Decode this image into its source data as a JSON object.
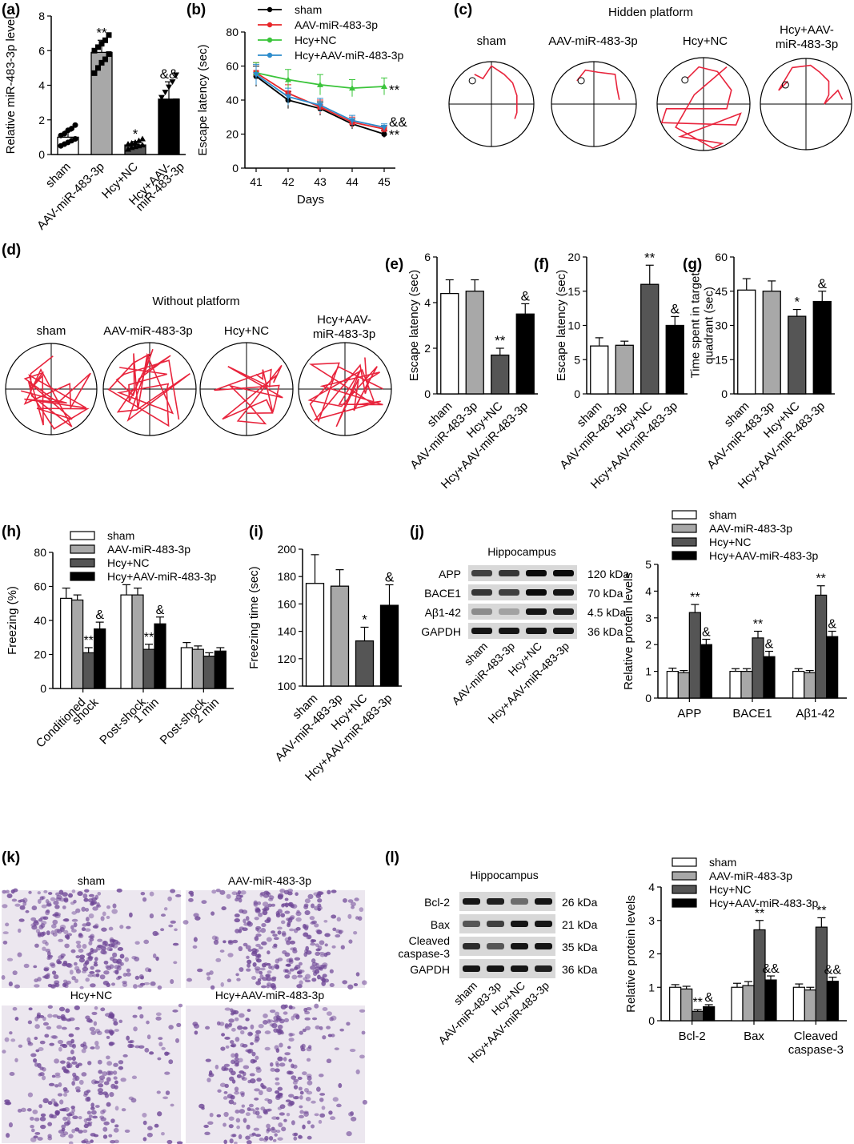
{
  "groups": [
    "sham",
    "AAV-miR-483-3p",
    "Hcy+NC",
    "Hcy+AAV-miR-483-3p"
  ],
  "group_labels_two_line": {
    "c3": [
      "Hcy+AAV-",
      "miR-483-3p"
    ],
    "a3": [
      "Hcy+AAV-",
      "miR-483-3p"
    ]
  },
  "colors": {
    "line_sham": "#000000",
    "line_aav": "#e8262a",
    "line_hcy": "#3ac43a",
    "line_hcyaav": "#2d8ccc",
    "trace": "#e8243c",
    "bar_fills": [
      "#ffffff",
      "#a8a8a8",
      "#555555",
      "#000000"
    ]
  },
  "panels": {
    "a": "(a)",
    "b": "(b)",
    "c": "(c)",
    "d": "(d)",
    "e": "(e)",
    "f": "(f)",
    "g": "(g)",
    "h": "(h)",
    "i": "(i)",
    "j": "(j)",
    "k": "(k)",
    "l": "(l)"
  },
  "text": {
    "hidden_platform": "Hidden platform",
    "without_platform": "Without platform",
    "hippocampus": "Hippocampus",
    "c_sham": "sham",
    "c_aav": "AAV-miR-483-3p",
    "c_hcy": "Hcy+NC",
    "c_hcyaav1": "Hcy+AAV-",
    "c_hcyaav2": "miR-483-3p",
    "k_sham": "sham",
    "k_aav": "AAV-miR-483-3p",
    "k_hcy": "Hcy+NC",
    "k_hcyaav": "Hcy+AAV-miR-483-3p"
  },
  "blots": {
    "j": {
      "rows": [
        "APP",
        "BACE1",
        "Aβ1-42",
        "GAPDH"
      ],
      "sizes": [
        "120 kDa",
        "70 kDa",
        "4.5 kDa",
        "36 kDa"
      ],
      "intensity": [
        [
          0.7,
          0.75,
          0.95,
          0.95
        ],
        [
          0.75,
          0.7,
          0.95,
          0.9
        ],
        [
          0.35,
          0.25,
          0.9,
          0.85
        ],
        [
          0.9,
          0.9,
          0.9,
          0.9
        ]
      ]
    },
    "l": {
      "rows": [
        "Bcl-2",
        "Bax",
        "Cleaved caspase-3",
        "GAPDH"
      ],
      "row_lines": [
        [
          "Bcl-2"
        ],
        [
          "Bax"
        ],
        [
          "Cleaved",
          "caspase-3"
        ],
        [
          "GAPDH"
        ]
      ],
      "sizes": [
        "26 kDa",
        "21 kDa",
        "35 kDa",
        "36 kDa"
      ],
      "intensity": [
        [
          0.9,
          0.85,
          0.5,
          0.9
        ],
        [
          0.6,
          0.7,
          0.9,
          0.9
        ],
        [
          0.8,
          0.6,
          0.9,
          0.9
        ],
        [
          0.9,
          0.9,
          0.9,
          0.85
        ]
      ]
    }
  },
  "chart_data": [
    {
      "id": "a",
      "type": "bar",
      "title": "",
      "ylabel": "Relative miR-483-3p level",
      "ylim": [
        0,
        8
      ],
      "yticks": [
        0,
        2,
        4,
        6,
        8
      ],
      "categories": [
        "sham",
        "AAV-miR-483-3p",
        "Hcy+NC",
        "Hcy+AAV-miR-483-3p"
      ],
      "values": [
        1.0,
        5.9,
        0.55,
        3.2
      ],
      "errors": [
        0.35,
        0.7,
        0.2,
        1.0
      ],
      "annotations": [
        "",
        "**",
        "*",
        "&&"
      ],
      "points": [
        [
          0.5,
          0.6,
          0.7,
          0.8,
          0.9,
          1.1,
          1.2,
          1.4,
          1.5,
          1.7
        ],
        [
          4.7,
          5.0,
          5.3,
          5.5,
          5.8,
          6.0,
          6.2,
          6.4,
          6.6,
          6.9
        ],
        [
          0.3,
          0.4,
          0.45,
          0.5,
          0.55,
          0.6,
          0.65,
          0.7,
          0.8,
          0.9
        ],
        [
          2.0,
          2.3,
          2.6,
          2.9,
          3.1,
          3.3,
          3.6,
          3.9,
          4.2,
          4.6
        ]
      ],
      "tick_labels": [
        [
          "sham"
        ],
        [
          "AAV-miR-483-3p"
        ],
        [
          "Hcy+NC"
        ],
        [
          "Hcy+AAV-",
          "miR-483-3p"
        ]
      ]
    },
    {
      "id": "b",
      "type": "line",
      "title": "",
      "xlabel": "Days",
      "ylabel": "Escape latency (sec)",
      "ylim": [
        0,
        80
      ],
      "yticks": [
        0,
        20,
        40,
        60,
        80
      ],
      "x": [
        41,
        42,
        43,
        44,
        45
      ],
      "series": [
        {
          "name": "sham",
          "values": [
            54,
            40,
            35,
            26,
            20
          ],
          "errors": [
            6,
            5,
            4,
            3,
            2
          ]
        },
        {
          "name": "AAV-miR-483-3p",
          "values": [
            56,
            44,
            36,
            27,
            23
          ],
          "errors": [
            6,
            5,
            4,
            3,
            2
          ]
        },
        {
          "name": "Hcy+NC",
          "values": [
            56,
            52,
            49,
            47,
            48
          ],
          "errors": [
            6,
            6,
            6,
            5,
            5
          ]
        },
        {
          "name": "Hcy+AAV-miR-483-3p",
          "values": [
            55,
            42,
            37,
            28,
            24
          ],
          "errors": [
            6,
            5,
            4,
            3,
            2
          ]
        }
      ],
      "annotations": [
        "**",
        "&&",
        "**"
      ]
    },
    {
      "id": "e",
      "type": "bar",
      "ylabel": "Escape latency (sec)",
      "ylim": [
        0,
        6
      ],
      "yticks": [
        0,
        2,
        4,
        6
      ],
      "categories": [
        "sham",
        "AAV-miR-483-3p",
        "Hcy+NC",
        "Hcy+AAV-miR-483-3p"
      ],
      "values": [
        4.4,
        4.5,
        1.7,
        3.5
      ],
      "errors": [
        0.6,
        0.5,
        0.3,
        0.45
      ],
      "annotations": [
        "",
        "",
        "**",
        "&"
      ]
    },
    {
      "id": "f",
      "type": "bar",
      "ylabel": "Escape latency (sec)",
      "ylim": [
        0,
        20
      ],
      "yticks": [
        0,
        5,
        10,
        15,
        20
      ],
      "categories": [
        "sham",
        "AAV-miR-483-3p",
        "Hcy+NC",
        "Hcy+AAV-miR-483-3p"
      ],
      "values": [
        7,
        7.1,
        16,
        10
      ],
      "errors": [
        1.2,
        0.6,
        2.8,
        1.3
      ],
      "annotations": [
        "",
        "",
        "**",
        "&"
      ]
    },
    {
      "id": "g",
      "type": "bar",
      "ylabel": "Time spent in target quadrant (sec)",
      "ylabel_lines": [
        "Time spent in target",
        "quadrant (sec)"
      ],
      "ylim": [
        0,
        60
      ],
      "yticks": [
        0,
        15,
        30,
        45,
        60
      ],
      "categories": [
        "sham",
        "AAV-miR-483-3p",
        "Hcy+NC",
        "Hcy+AAV-miR-483-3p"
      ],
      "values": [
        45.5,
        45,
        34,
        40.5
      ],
      "errors": [
        5,
        4.5,
        3,
        4.5
      ],
      "annotations": [
        "",
        "",
        "*",
        "&"
      ]
    },
    {
      "id": "h",
      "type": "bar",
      "ylabel": "Freezing (%)",
      "ylim": [
        0,
        80
      ],
      "yticks": [
        0,
        20,
        40,
        60,
        80
      ],
      "categories": [
        "Conditioned shock",
        "Post-shock 1 min",
        "Post-shock 2 min"
      ],
      "tick_labels": [
        [
          "Conditioned",
          "shock"
        ],
        [
          "Post-shock",
          "1 min"
        ],
        [
          "Post-shock",
          "2 min"
        ]
      ],
      "series": [
        {
          "name": "sham",
          "values": [
            53,
            55,
            24
          ],
          "errors": [
            6,
            6,
            3
          ]
        },
        {
          "name": "AAV-miR-483-3p",
          "values": [
            52,
            55,
            23
          ],
          "errors": [
            3,
            4,
            2
          ]
        },
        {
          "name": "Hcy+NC",
          "values": [
            21,
            23,
            19
          ],
          "errors": [
            3,
            3,
            2
          ]
        },
        {
          "name": "Hcy+AAV-miR-483-3p",
          "values": [
            35,
            38,
            22
          ],
          "errors": [
            4,
            4,
            2
          ]
        }
      ],
      "annotations": [
        [
          "",
          "",
          "**",
          "&"
        ],
        [
          "",
          "",
          "**",
          "&"
        ],
        [
          "",
          "",
          "",
          ""
        ]
      ]
    },
    {
      "id": "i",
      "type": "bar",
      "ylabel": "Freezing time (sec)",
      "ylim": [
        100,
        200
      ],
      "yticks": [
        100,
        120,
        140,
        160,
        180,
        200
      ],
      "categories": [
        "sham",
        "AAV-miR-483-3p",
        "Hcy+NC",
        "Hcy+AAV-miR-483-3p"
      ],
      "values": [
        175,
        173,
        133,
        159
      ],
      "errors": [
        21,
        12,
        10,
        15
      ],
      "annotations": [
        "",
        "",
        "*",
        "&"
      ]
    },
    {
      "id": "j",
      "type": "bar",
      "ylabel": "Relative protein levels",
      "ylim": [
        0,
        5
      ],
      "yticks": [
        0,
        1,
        2,
        3,
        4,
        5
      ],
      "categories": [
        "APP",
        "BACE1",
        "Aβ1-42"
      ],
      "series": [
        {
          "name": "sham",
          "values": [
            1.0,
            1.0,
            1.0
          ],
          "errors": [
            0.12,
            0.1,
            0.1
          ]
        },
        {
          "name": "AAV-miR-483-3p",
          "values": [
            0.95,
            1.0,
            0.95
          ],
          "errors": [
            0.08,
            0.1,
            0.08
          ]
        },
        {
          "name": "Hcy+NC",
          "values": [
            3.2,
            2.25,
            3.85
          ],
          "errors": [
            0.3,
            0.25,
            0.35
          ]
        },
        {
          "name": "Hcy+AAV-miR-483-3p",
          "values": [
            2.0,
            1.55,
            2.3
          ],
          "errors": [
            0.2,
            0.2,
            0.2
          ]
        }
      ],
      "annotations": [
        [
          "",
          "",
          "**",
          "&"
        ],
        [
          "",
          "",
          "**",
          "&"
        ],
        [
          "",
          "",
          "**",
          "&"
        ]
      ]
    },
    {
      "id": "l",
      "type": "bar",
      "ylabel": "Relative protein levels",
      "ylim": [
        0,
        4
      ],
      "yticks": [
        0,
        1,
        2,
        3,
        4
      ],
      "categories": [
        "Bcl-2",
        "Bax",
        "Cleaved caspase-3"
      ],
      "tick_labels": [
        [
          "Bcl-2"
        ],
        [
          "Bax"
        ],
        [
          "Cleaved",
          "caspase-3"
        ]
      ],
      "series": [
        {
          "name": "sham",
          "values": [
            1.0,
            1.0,
            1.0
          ],
          "errors": [
            0.08,
            0.12,
            0.1
          ]
        },
        {
          "name": "AAV-miR-483-3p",
          "values": [
            0.95,
            1.05,
            0.92
          ],
          "errors": [
            0.08,
            0.12,
            0.08
          ]
        },
        {
          "name": "Hcy+NC",
          "values": [
            0.28,
            2.72,
            2.8
          ],
          "errors": [
            0.05,
            0.28,
            0.28
          ]
        },
        {
          "name": "Hcy+AAV-miR-483-3p",
          "values": [
            0.42,
            1.22,
            1.18
          ],
          "errors": [
            0.06,
            0.12,
            0.12
          ]
        }
      ],
      "annotations": [
        [
          "",
          "",
          "**",
          "&"
        ],
        [
          "",
          "",
          "**",
          "&&"
        ],
        [
          "",
          "",
          "**",
          "&&"
        ]
      ]
    }
  ]
}
